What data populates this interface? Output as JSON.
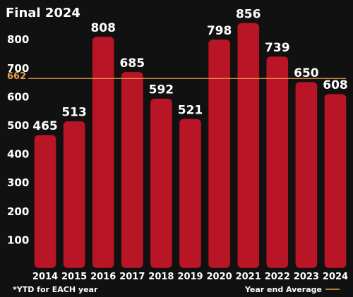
{
  "chart_data": {
    "type": "bar",
    "title": "Final 2024",
    "categories": [
      "2014",
      "2015",
      "2016",
      "2017",
      "2018",
      "2019",
      "2020",
      "2021",
      "2022",
      "2023",
      "2024"
    ],
    "values": [
      465,
      513,
      808,
      685,
      592,
      521,
      798,
      856,
      739,
      650,
      608
    ],
    "y_ticks": [
      100,
      200,
      300,
      400,
      500,
      600,
      700,
      800
    ],
    "ylim": [
      0,
      880
    ],
    "average": {
      "value": 662,
      "label": "662"
    },
    "footnote": "*YTD for EACH year",
    "legend": {
      "label": "Year end Average",
      "placement": "bottom-right"
    },
    "colors": {
      "background": "#111111",
      "bar": "#b81526",
      "average": "#e6a04a",
      "text": "#ffffff"
    },
    "grid": false
  }
}
